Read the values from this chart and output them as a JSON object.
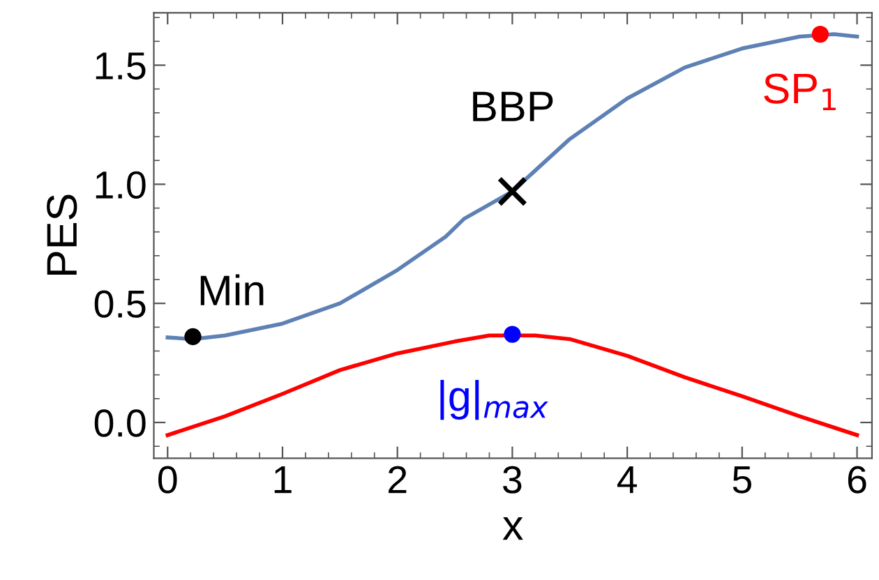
{
  "chart_data": {
    "type": "line",
    "xlabel": "x",
    "ylabel": "PES",
    "xlim": [
      -0.12,
      6.13
    ],
    "ylim": [
      -0.15,
      1.72
    ],
    "xticks": [
      0,
      1,
      2,
      3,
      4,
      5,
      6
    ],
    "yticks": [
      {
        "value": 0,
        "label": "0.0"
      },
      {
        "value": 0.5,
        "label": "0.5"
      },
      {
        "value": 1,
        "label": "1.0"
      },
      {
        "value": 1.5,
        "label": "1.5"
      }
    ],
    "grid": false,
    "legend": false,
    "series": [
      {
        "color": "#5e81b5",
        "x": [
          0,
          0.22,
          0.5,
          1,
          1.5,
          2,
          2.18,
          2.42,
          2.58,
          3,
          3.5,
          4,
          4.5,
          5,
          5.5,
          5.8,
          6
        ],
        "values": [
          0.357,
          0.35,
          0.365,
          0.415,
          0.5,
          0.64,
          0.7,
          0.78,
          0.855,
          0.97,
          1.19,
          1.36,
          1.49,
          1.57,
          1.62,
          1.63,
          1.62
        ]
      },
      {
        "color": "#ff0000",
        "x": [
          0,
          0.5,
          1,
          1.5,
          2,
          2.5,
          2.8,
          3.2,
          3.5,
          4,
          4.5,
          5,
          5.5,
          6
        ],
        "values": [
          -0.053,
          0.026,
          0.12,
          0.22,
          0.29,
          0.34,
          0.365,
          0.365,
          0.35,
          0.28,
          0.19,
          0.11,
          0.026,
          -0.053
        ]
      },
      {
        "type": "scatter",
        "marker": "circle",
        "name": "Min",
        "color": "#000000",
        "x": [
          0.22
        ],
        "values": [
          0.36
        ]
      },
      {
        "type": "scatter",
        "marker": "cross",
        "name": "BBP",
        "color": "#000000",
        "x": [
          3
        ],
        "values": [
          0.97
        ]
      },
      {
        "type": "scatter",
        "marker": "circle",
        "name": "SP$_{1}$",
        "color": "#ff0000",
        "x": [
          5.68
        ],
        "values": [
          1.63
        ]
      },
      {
        "type": "scatter",
        "marker": "circle",
        "name": "|g|$_{max}$",
        "color": "#0000ff",
        "x": [
          3
        ],
        "values": [
          0.37
        ]
      }
    ]
  }
}
